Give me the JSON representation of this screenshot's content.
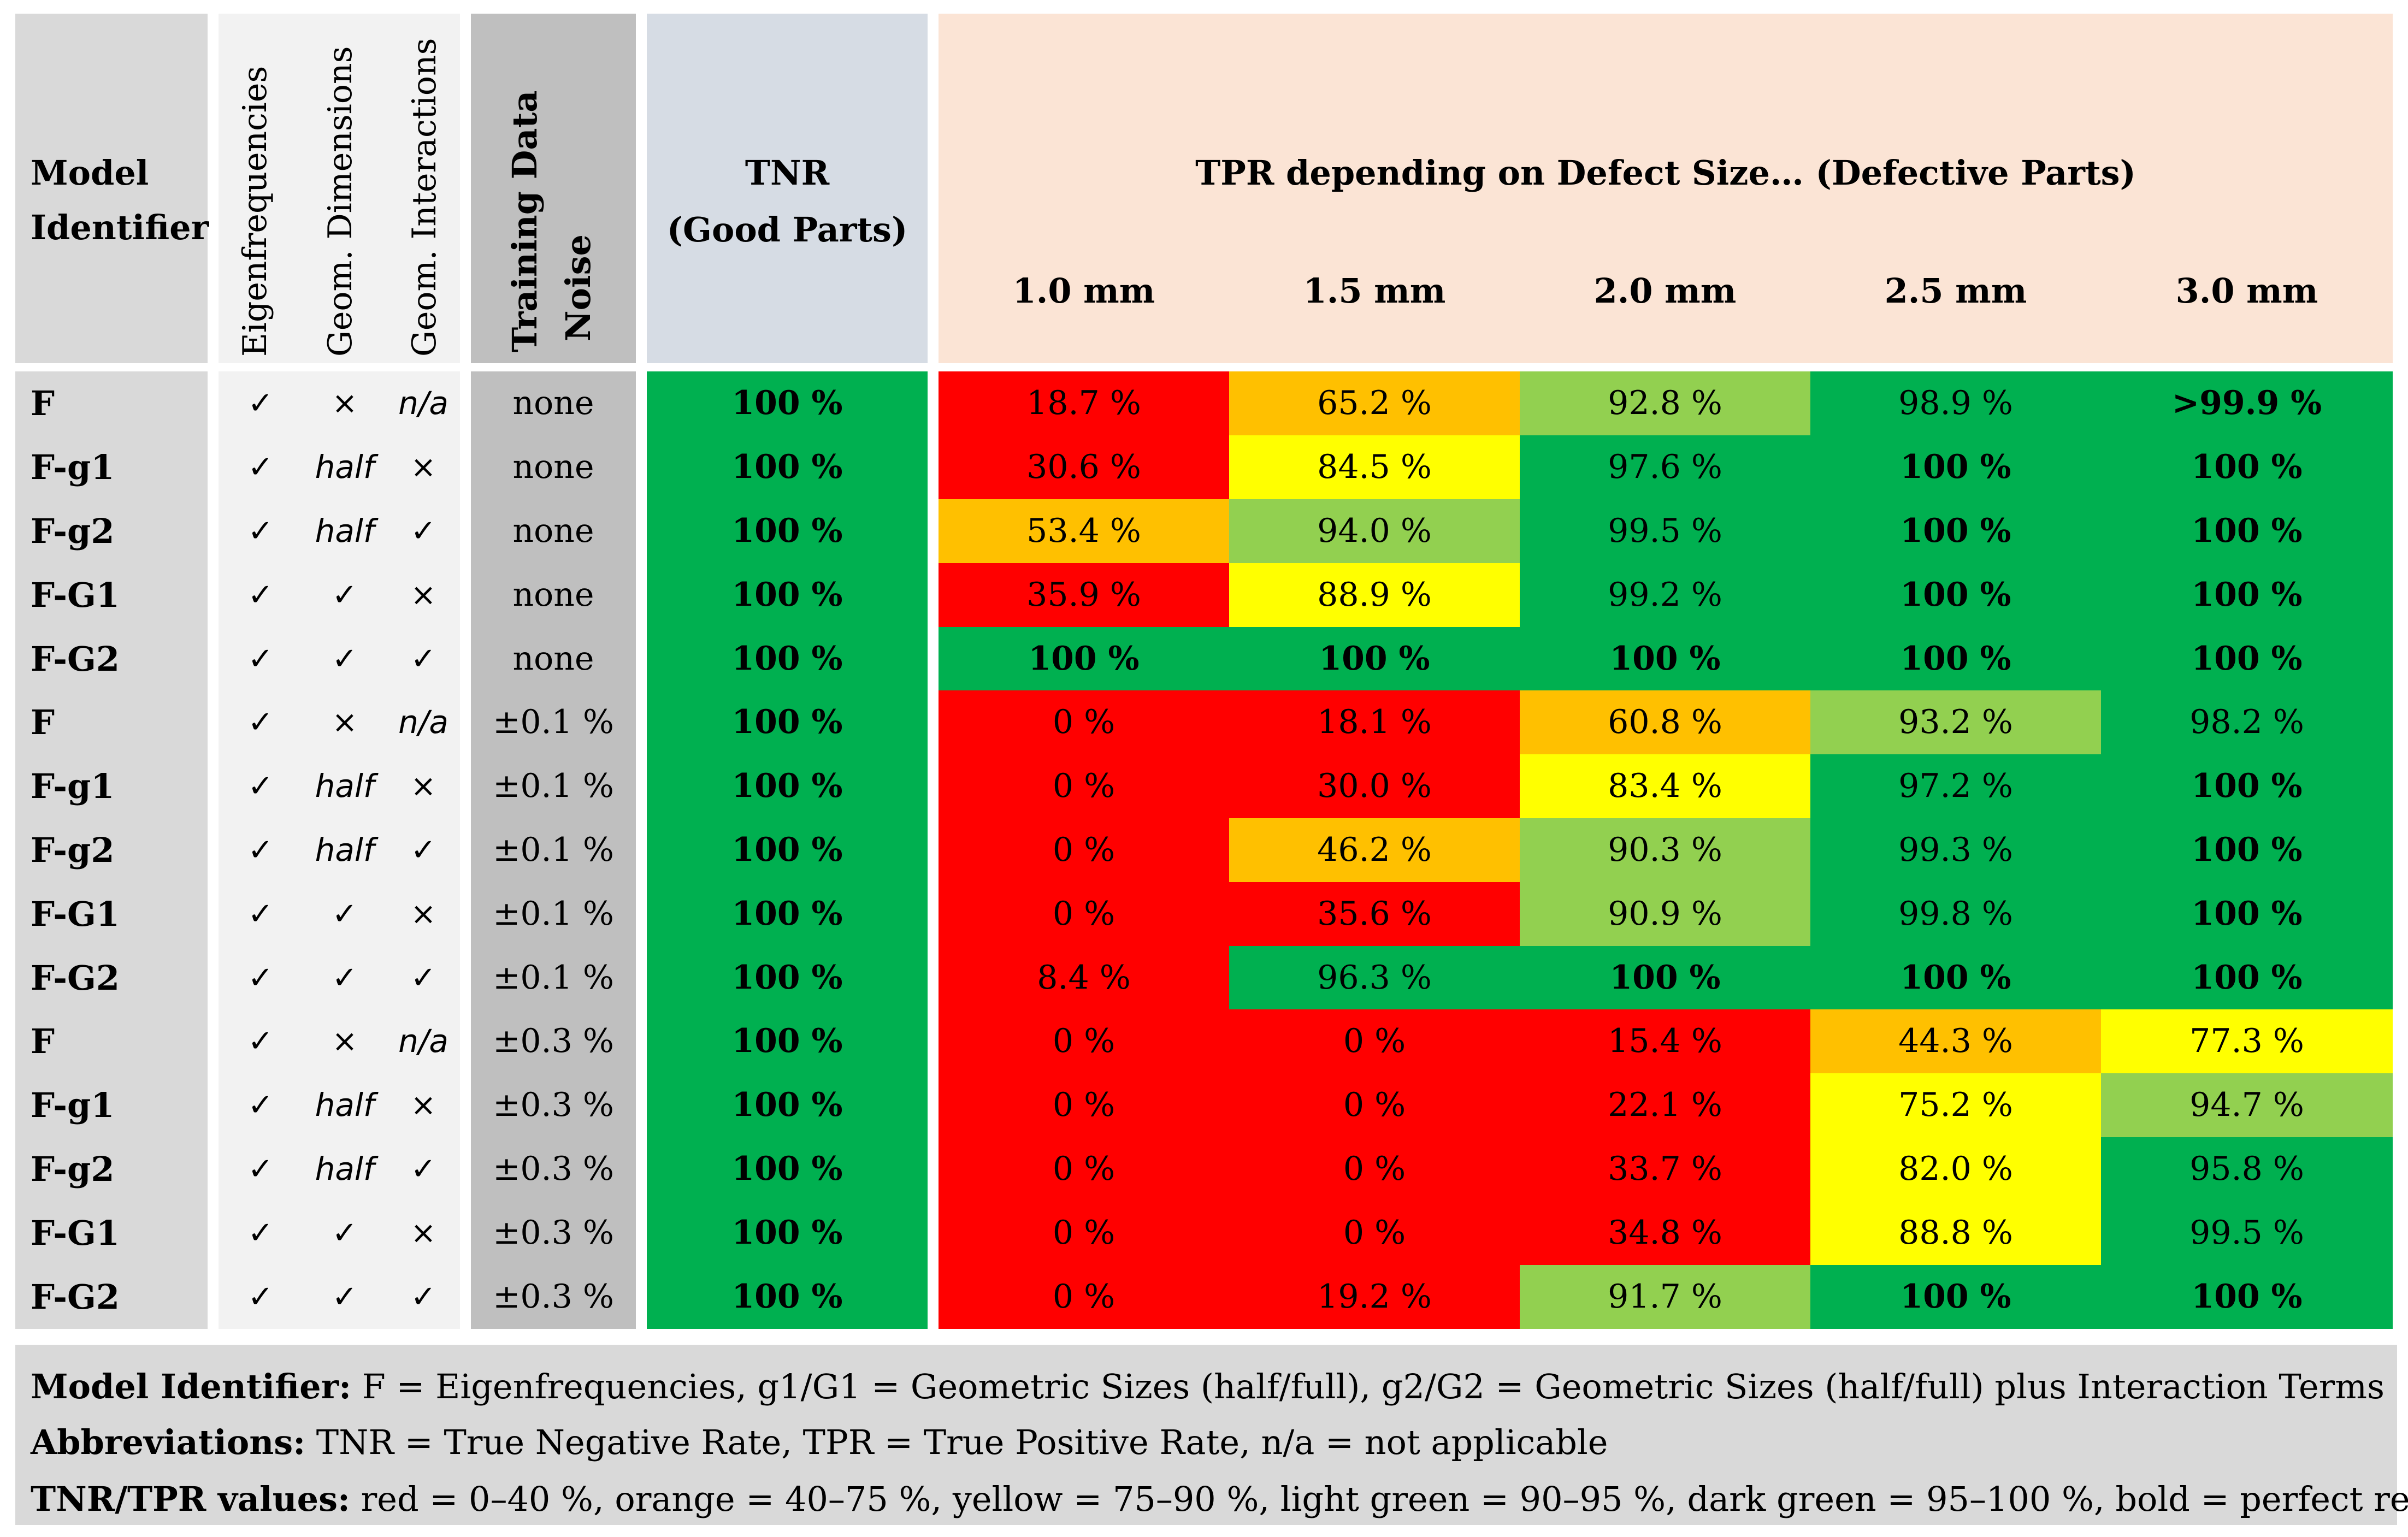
{
  "colors": {
    "red": "#ff0000",
    "orange": "#ffc000",
    "yellow": "#ffff00",
    "light_green": "#92d050",
    "dark_green": "#00b050"
  },
  "header": {
    "model_identifier": [
      "Model",
      "Identifier"
    ],
    "feature_cols": [
      "Eigenfrequencies",
      "Geom. Dimensions",
      "Geom. Interactions"
    ],
    "noise": [
      "Training Data",
      "Noise"
    ],
    "tnr": [
      "TNR",
      "(Good Parts)"
    ],
    "tpr": "TPR depending on Defect Size… (Defective Parts)",
    "sizes": [
      "1.0 mm",
      "1.5 mm",
      "2.0 mm",
      "2.5 mm",
      "3.0 mm"
    ]
  },
  "groups": [
    {
      "rows": [
        {
          "id": "F",
          "eig": "✓",
          "geo": "×",
          "inter": "n/a",
          "noise": "none",
          "tnr": "100 %",
          "tpr": [
            "18.7 %",
            "65.2 %",
            "92.8 %",
            "98.9 %",
            ">99.9 %"
          ],
          "colors": [
            "red",
            "orange",
            "light_green",
            "dark_green",
            "dark_green"
          ],
          "bold": [
            false,
            false,
            false,
            false,
            true
          ]
        },
        {
          "id": "F-g1",
          "eig": "✓",
          "geo": "half",
          "inter": "×",
          "noise": "none",
          "tnr": "100 %",
          "tpr": [
            "30.6 %",
            "84.5 %",
            "97.6 %",
            "100 %",
            "100 %"
          ],
          "colors": [
            "red",
            "yellow",
            "dark_green",
            "dark_green",
            "dark_green"
          ],
          "bold": [
            false,
            false,
            false,
            true,
            true
          ]
        },
        {
          "id": "F-g2",
          "eig": "✓",
          "geo": "half",
          "inter": "✓",
          "noise": "none",
          "tnr": "100 %",
          "tpr": [
            "53.4 %",
            "94.0 %",
            "99.5 %",
            "100 %",
            "100 %"
          ],
          "colors": [
            "orange",
            "light_green",
            "dark_green",
            "dark_green",
            "dark_green"
          ],
          "bold": [
            false,
            false,
            false,
            true,
            true
          ]
        },
        {
          "id": "F-G1",
          "eig": "✓",
          "geo": "✓",
          "inter": "×",
          "noise": "none",
          "tnr": "100 %",
          "tpr": [
            "35.9 %",
            "88.9 %",
            "99.2 %",
            "100 %",
            "100 %"
          ],
          "colors": [
            "red",
            "yellow",
            "dark_green",
            "dark_green",
            "dark_green"
          ],
          "bold": [
            false,
            false,
            false,
            true,
            true
          ]
        },
        {
          "id": "F-G2",
          "eig": "✓",
          "geo": "✓",
          "inter": "✓",
          "noise": "none",
          "tnr": "100 %",
          "tpr": [
            "100 %",
            "100 %",
            "100 %",
            "100 %",
            "100 %"
          ],
          "colors": [
            "dark_green",
            "dark_green",
            "dark_green",
            "dark_green",
            "dark_green"
          ],
          "bold": [
            true,
            true,
            true,
            true,
            true
          ]
        }
      ]
    },
    {
      "rows": [
        {
          "id": "F",
          "eig": "✓",
          "geo": "×",
          "inter": "n/a",
          "noise": "±0.1 %",
          "tnr": "100 %",
          "tpr": [
            "0 %",
            "18.1 %",
            "60.8 %",
            "93.2 %",
            "98.2 %"
          ],
          "colors": [
            "red",
            "red",
            "orange",
            "light_green",
            "dark_green"
          ],
          "bold": [
            false,
            false,
            false,
            false,
            false
          ]
        },
        {
          "id": "F-g1",
          "eig": "✓",
          "geo": "half",
          "inter": "×",
          "noise": "±0.1 %",
          "tnr": "100 %",
          "tpr": [
            "0 %",
            "30.0 %",
            "83.4 %",
            "97.2 %",
            "100 %"
          ],
          "colors": [
            "red",
            "red",
            "yellow",
            "dark_green",
            "dark_green"
          ],
          "bold": [
            false,
            false,
            false,
            false,
            true
          ]
        },
        {
          "id": "F-g2",
          "eig": "✓",
          "geo": "half",
          "inter": "✓",
          "noise": "±0.1 %",
          "tnr": "100 %",
          "tpr": [
            "0 %",
            "46.2 %",
            "90.3 %",
            "99.3 %",
            "100 %"
          ],
          "colors": [
            "red",
            "orange",
            "light_green",
            "dark_green",
            "dark_green"
          ],
          "bold": [
            false,
            false,
            false,
            false,
            true
          ]
        },
        {
          "id": "F-G1",
          "eig": "✓",
          "geo": "✓",
          "inter": "×",
          "noise": "±0.1 %",
          "tnr": "100 %",
          "tpr": [
            "0 %",
            "35.6 %",
            "90.9 %",
            "99.8 %",
            "100 %"
          ],
          "colors": [
            "red",
            "red",
            "light_green",
            "dark_green",
            "dark_green"
          ],
          "bold": [
            false,
            false,
            false,
            false,
            true
          ]
        },
        {
          "id": "F-G2",
          "eig": "✓",
          "geo": "✓",
          "inter": "✓",
          "noise": "±0.1 %",
          "tnr": "100 %",
          "tpr": [
            "8.4 %",
            "96.3 %",
            "100 %",
            "100 %",
            "100 %"
          ],
          "colors": [
            "red",
            "dark_green",
            "dark_green",
            "dark_green",
            "dark_green"
          ],
          "bold": [
            false,
            false,
            true,
            true,
            true
          ]
        }
      ]
    },
    {
      "rows": [
        {
          "id": "F",
          "eig": "✓",
          "geo": "×",
          "inter": "n/a",
          "noise": "±0.3 %",
          "tnr": "100 %",
          "tpr": [
            "0 %",
            "0 %",
            "15.4 %",
            "44.3 %",
            "77.3 %"
          ],
          "colors": [
            "red",
            "red",
            "red",
            "orange",
            "yellow"
          ],
          "bold": [
            false,
            false,
            false,
            false,
            false
          ]
        },
        {
          "id": "F-g1",
          "eig": "✓",
          "geo": "half",
          "inter": "×",
          "noise": "±0.3 %",
          "tnr": "100 %",
          "tpr": [
            "0 %",
            "0 %",
            "22.1 %",
            "75.2 %",
            "94.7 %"
          ],
          "colors": [
            "red",
            "red",
            "red",
            "yellow",
            "light_green"
          ],
          "bold": [
            false,
            false,
            false,
            false,
            false
          ]
        },
        {
          "id": "F-g2",
          "eig": "✓",
          "geo": "half",
          "inter": "✓",
          "noise": "±0.3 %",
          "tnr": "100 %",
          "tpr": [
            "0 %",
            "0 %",
            "33.7 %",
            "82.0 %",
            "95.8 %"
          ],
          "colors": [
            "red",
            "red",
            "red",
            "yellow",
            "dark_green"
          ],
          "bold": [
            false,
            false,
            false,
            false,
            false
          ]
        },
        {
          "id": "F-G1",
          "eig": "✓",
          "geo": "✓",
          "inter": "×",
          "noise": "±0.3 %",
          "tnr": "100 %",
          "tpr": [
            "0 %",
            "0 %",
            "34.8 %",
            "88.8 %",
            "99.5 %"
          ],
          "colors": [
            "red",
            "red",
            "red",
            "yellow",
            "dark_green"
          ],
          "bold": [
            false,
            false,
            false,
            false,
            false
          ]
        },
        {
          "id": "F-G2",
          "eig": "✓",
          "geo": "✓",
          "inter": "✓",
          "noise": "±0.3 %",
          "tnr": "100 %",
          "tpr": [
            "0 %",
            "19.2 %",
            "91.7 %",
            "100 %",
            "100 %"
          ],
          "colors": [
            "red",
            "red",
            "light_green",
            "dark_green",
            "dark_green"
          ],
          "bold": [
            false,
            false,
            false,
            true,
            true
          ]
        }
      ]
    }
  ],
  "legend": {
    "line1_label": "Model Identifier:",
    "line1_text": " F = Eigenfrequencies, g1/G1 = Geometric Sizes (half/full), g2/G2 = Geometric Sizes (half/full) plus Interaction Terms",
    "line2_label": "Abbreviations:",
    "line2_text": " TNR = True Negative Rate, TPR = True Positive Rate, n/a = not applicable",
    "line3_label": "TNR/TPR values:",
    "line3_text": " red = 0–40 %, orange = 40–75 %, yellow = 75–90 %, light green = 90–95 %, dark green = 95–100 %, bold = perfect result"
  }
}
